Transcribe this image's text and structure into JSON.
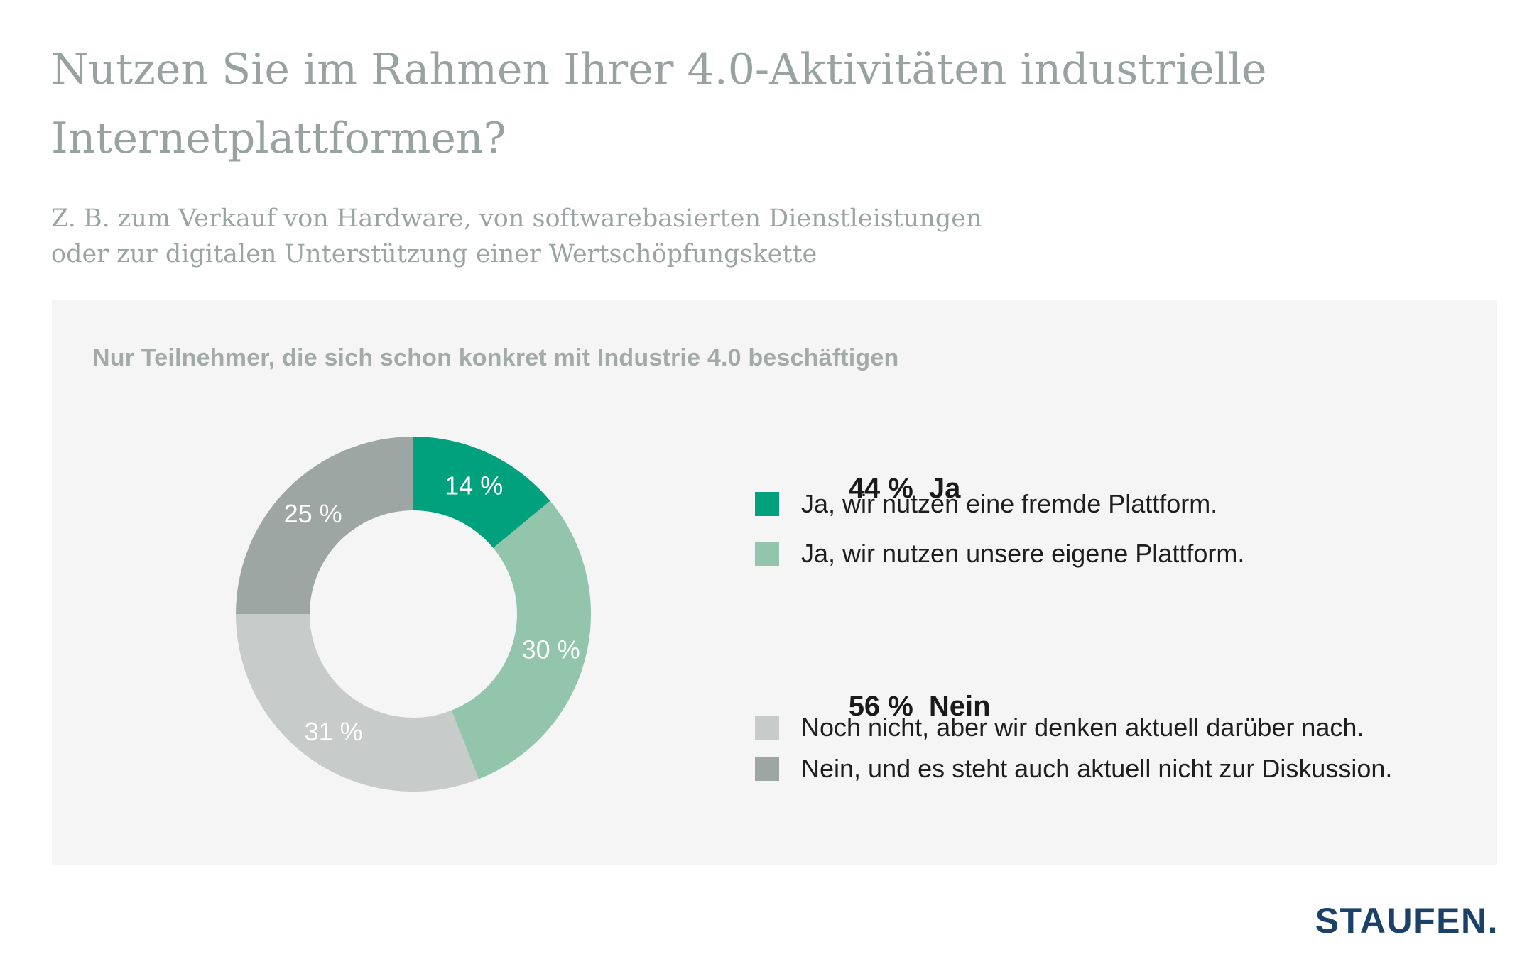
{
  "page": {
    "title_line1": "Nutzen Sie im Rahmen Ihrer 4.0-Aktivitäten industrielle",
    "title_line2": "Internetplattformen?",
    "subtitle_line1": "Z. B. zum Verkauf von Hardware, von softwarebasierten Dienstleistungen",
    "subtitle_line2": "oder zur digitalen Unterstützung einer Wertschöpfungskette",
    "logo": "STAUFEN."
  },
  "panel": {
    "heading": "Nur Teilnehmer, die sich schon konkret mit Industrie 4.0 beschäftigen",
    "background": "#f4f5f4"
  },
  "chart_data": {
    "type": "pie",
    "subtype": "donut",
    "title": "Nutzen Sie im Rahmen Ihrer 4.0-Aktivitäten industrielle Internetplattformen?",
    "start_angle_deg": 0,
    "direction": "clockwise",
    "inner_radius_ratio": 0.584,
    "label_radius_ratio": 0.8,
    "label_color": "#ffffff",
    "segments": [
      {
        "label": "14 %",
        "value": 14,
        "color": "#00a17c",
        "meaning": "Ja, wir nutzen eine fremde Plattform."
      },
      {
        "label": "30 %",
        "value": 30,
        "color": "#92c5ab",
        "meaning": "Ja, wir nutzen unsere eigene Plattform."
      },
      {
        "label": "31 %",
        "value": 31,
        "color": "#c7cbc9",
        "meaning": "Noch nicht, aber wir denken aktuell darüber nach."
      },
      {
        "label": "25 %",
        "value": 25,
        "color": "#9ea6a3",
        "meaning": "Nein, und es steht auch aktuell nicht zur Diskussion."
      }
    ]
  },
  "legend": {
    "groups": [
      {
        "header_value": "44 %",
        "header_word": "Ja",
        "items": [
          {
            "color": "#00a17c",
            "label": "Ja, wir nutzen eine fremde Plattform."
          },
          {
            "color": "#92c5ab",
            "label": "Ja, wir nutzen unsere eigene Plattform."
          }
        ]
      },
      {
        "header_value": "56 %",
        "header_word": "Nein",
        "items": [
          {
            "color": "#c7cbc9",
            "label": "Noch nicht, aber wir denken aktuell darüber nach."
          },
          {
            "color": "#9ea6a3",
            "label": "Nein, und es steht auch aktuell nicht zur Diskussion."
          }
        ]
      }
    ]
  },
  "colors": {
    "title_gray": "#98a2a0",
    "heading_gray": "#a3aba8",
    "accent_teal": "#00a17c",
    "accent_green": "#92c5ab",
    "neutral_light": "#c7cbc9",
    "neutral_mid": "#9ea6a3",
    "logo_navy": "#1b4168",
    "text_dark": "#1e1e1e"
  }
}
